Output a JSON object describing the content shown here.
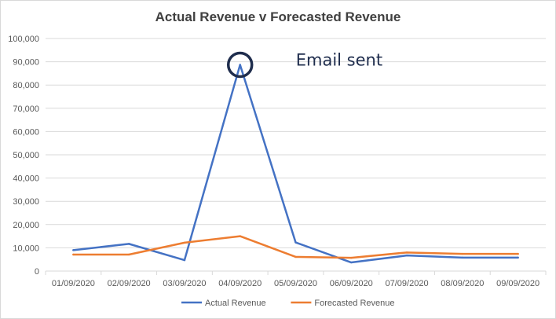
{
  "chart_data": {
    "type": "line",
    "title": "Actual Revenue v Forecasted Revenue",
    "xlabel": "",
    "ylabel": "",
    "categories": [
      "01/09/2020",
      "02/09/2020",
      "03/09/2020",
      "04/09/2020",
      "05/09/2020",
      "06/09/2020",
      "07/09/2020",
      "08/09/2020",
      "09/09/2020"
    ],
    "ylim": [
      0,
      100000
    ],
    "yticks": [
      "0",
      "10,000",
      "20,000",
      "30,000",
      "40,000",
      "50,000",
      "60,000",
      "70,000",
      "80,000",
      "90,000",
      "100,000"
    ],
    "grid": true,
    "legend_position": "bottom",
    "series": [
      {
        "name": "Actual Revenue",
        "color": "#4472c4",
        "values": [
          9000,
          11700,
          4700,
          88700,
          12300,
          3700,
          6700,
          5800,
          5800
        ]
      },
      {
        "name": "Forecasted Revenue",
        "color": "#ed7d31",
        "values": [
          7100,
          7100,
          12200,
          15000,
          6100,
          5700,
          8000,
          7400,
          7400
        ]
      }
    ],
    "annotations": [
      {
        "text": "Email sent",
        "category": "04/09/2020",
        "value": 88700,
        "marker": "circle",
        "color": "#1f2d4d"
      }
    ]
  }
}
